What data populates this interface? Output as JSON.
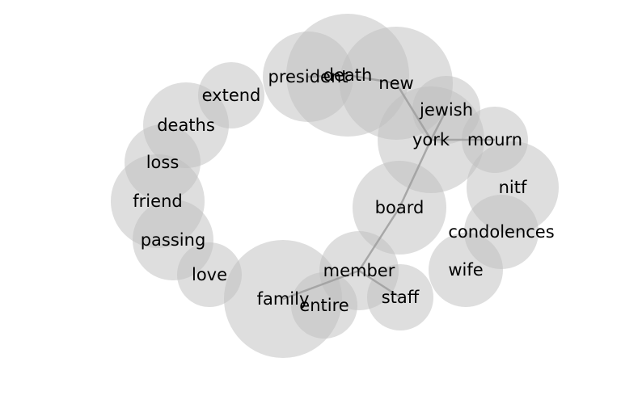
{
  "diagram": {
    "type": "word-cooccurrence-bubble-network",
    "colors": {
      "bubble": "#bdbdbd",
      "edge": "#9e9e9e",
      "label": "#000000",
      "background": "#ffffff"
    },
    "nodes": [
      {
        "id": "president",
        "label": "president"
      },
      {
        "id": "death",
        "label": "death"
      },
      {
        "id": "new",
        "label": "new"
      },
      {
        "id": "extend",
        "label": "extend"
      },
      {
        "id": "jewish",
        "label": "jewish"
      },
      {
        "id": "deaths",
        "label": "deaths"
      },
      {
        "id": "york",
        "label": "york"
      },
      {
        "id": "mourn",
        "label": "mourn"
      },
      {
        "id": "loss",
        "label": "loss"
      },
      {
        "id": "nitf",
        "label": "nitf"
      },
      {
        "id": "friend",
        "label": "friend"
      },
      {
        "id": "board",
        "label": "board"
      },
      {
        "id": "condolences",
        "label": "condolences"
      },
      {
        "id": "passing",
        "label": "passing"
      },
      {
        "id": "wife",
        "label": "wife"
      },
      {
        "id": "member",
        "label": "member"
      },
      {
        "id": "love",
        "label": "love"
      },
      {
        "id": "staff",
        "label": "staff"
      },
      {
        "id": "family",
        "label": "family"
      },
      {
        "id": "entire",
        "label": "entire"
      }
    ],
    "edges": [
      [
        "president",
        "death"
      ],
      [
        "death",
        "new"
      ],
      [
        "new",
        "york"
      ],
      [
        "jewish",
        "york"
      ],
      [
        "york",
        "mourn"
      ],
      [
        "york",
        "board"
      ],
      [
        "board",
        "member"
      ],
      [
        "member",
        "family"
      ],
      [
        "member",
        "staff"
      ]
    ]
  }
}
